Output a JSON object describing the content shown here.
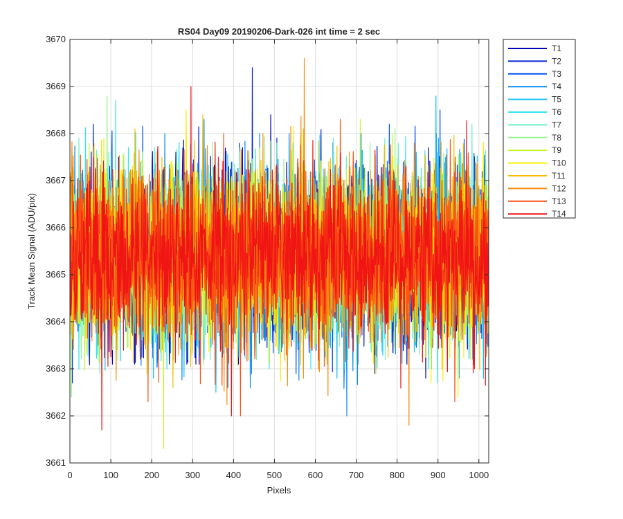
{
  "chart_data": {
    "type": "line",
    "title": "RS04 Day09 20190206-Dark-026 int time = 2 sec",
    "xlabel": "Pixels",
    "ylabel": "Track Mean Signal (ADU/pix)",
    "xlim": [
      0,
      1024
    ],
    "ylim": [
      3661,
      3670
    ],
    "x_ticks": [
      0,
      100,
      200,
      300,
      400,
      500,
      600,
      700,
      800,
      900,
      1000
    ],
    "y_ticks": [
      3661,
      3662,
      3663,
      3664,
      3665,
      3666,
      3667,
      3668,
      3669,
      3670
    ],
    "grid": true,
    "legend_position": "outside-top-right",
    "x_range_of_data": [
      1,
      1024
    ],
    "series": [
      {
        "name": "T1",
        "color": "#0000B2",
        "mean": 3665.4,
        "std": 0.9,
        "max": 3668.4,
        "min": 3662.8
      },
      {
        "name": "T2",
        "color": "#0020D8",
        "mean": 3665.4,
        "std": 0.9,
        "max": 3669.4,
        "min": 3662.7
      },
      {
        "name": "T3",
        "color": "#0050F0",
        "mean": 3665.4,
        "std": 0.9,
        "max": 3668.5,
        "min": 3662.6
      },
      {
        "name": "T4",
        "color": "#0A8CF0",
        "mean": 3665.4,
        "std": 0.9,
        "max": 3668.3,
        "min": 3662.0
      },
      {
        "name": "T5",
        "color": "#14BEF5",
        "mean": 3665.4,
        "std": 0.9,
        "max": 3668.8,
        "min": 3662.5
      },
      {
        "name": "T6",
        "color": "#2EE6F0",
        "mean": 3665.4,
        "std": 0.9,
        "max": 3668.7,
        "min": 3662.7
      },
      {
        "name": "T7",
        "color": "#64F0C8",
        "mean": 3665.4,
        "std": 0.9,
        "max": 3668.2,
        "min": 3662.9
      },
      {
        "name": "T8",
        "color": "#96F58C",
        "mean": 3665.4,
        "std": 0.9,
        "max": 3668.8,
        "min": 3662.4
      },
      {
        "name": "T9",
        "color": "#C8F532",
        "mean": 3665.4,
        "std": 0.9,
        "max": 3668.3,
        "min": 3661.3
      },
      {
        "name": "T10",
        "color": "#F5F000",
        "mean": 3665.4,
        "std": 0.9,
        "max": 3668.5,
        "min": 3662.4
      },
      {
        "name": "T11",
        "color": "#F5BE00",
        "mean": 3665.4,
        "std": 0.9,
        "max": 3668.4,
        "min": 3662.6
      },
      {
        "name": "T12",
        "color": "#FA8C0A",
        "mean": 3665.4,
        "std": 0.9,
        "max": 3669.6,
        "min": 3661.8
      },
      {
        "name": "T13",
        "color": "#FA5014",
        "mean": 3665.4,
        "std": 0.9,
        "max": 3668.3,
        "min": 3662.0
      },
      {
        "name": "T14",
        "color": "#F01414",
        "mean": 3665.4,
        "std": 0.9,
        "max": 3669.0,
        "min": 3661.7
      }
    ]
  }
}
